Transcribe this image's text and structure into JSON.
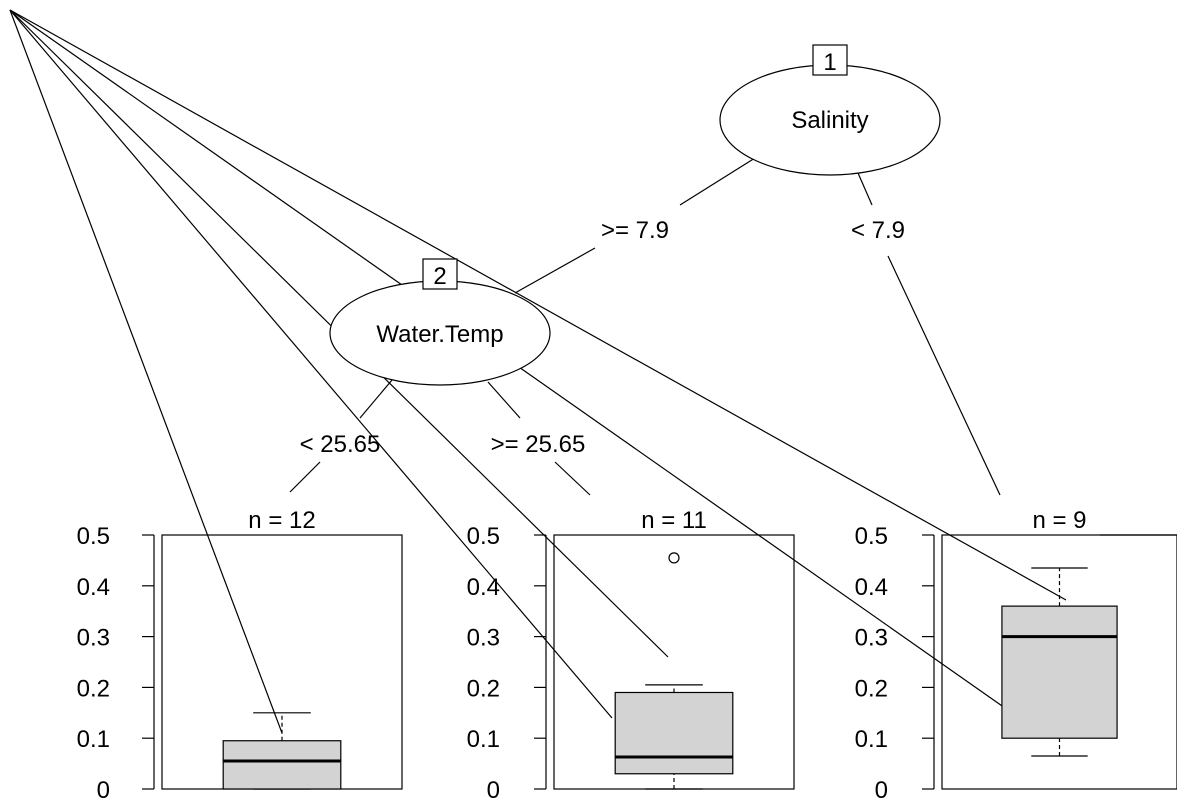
{
  "tree": {
    "nodes": [
      {
        "id": "1",
        "variable": "Salinity"
      },
      {
        "id": "2",
        "variable": "Water.Temp"
      }
    ],
    "edges": [
      {
        "label": ">= 7.9"
      },
      {
        "label": "< 7.9"
      },
      {
        "label": "< 25.65"
      },
      {
        "label": ">= 25.65"
      }
    ]
  },
  "chart_data": [
    {
      "type": "box",
      "title": "n = 12",
      "ylim": [
        0,
        0.5
      ],
      "ticks": [
        "0",
        "0.1",
        "0.2",
        "0.3",
        "0.4",
        "0.5"
      ],
      "box": {
        "lower_whisker": 0.0,
        "q1": 0.0,
        "median": 0.055,
        "q3": 0.095,
        "upper_whisker": 0.15
      },
      "outliers": []
    },
    {
      "type": "box",
      "title": "n = 11",
      "ylim": [
        0,
        0.5
      ],
      "ticks": [
        "0",
        "0.1",
        "0.2",
        "0.3",
        "0.4",
        "0.5"
      ],
      "box": {
        "lower_whisker": 0.0,
        "q1": 0.03,
        "median": 0.063,
        "q3": 0.19,
        "upper_whisker": 0.205
      },
      "outliers": [
        0.455
      ]
    },
    {
      "type": "box",
      "title": "n = 9",
      "ylim": [
        0,
        0.5
      ],
      "ticks": [
        "0",
        "0.1",
        "0.2",
        "0.3",
        "0.4",
        "0.5"
      ],
      "box": {
        "lower_whisker": 0.065,
        "q1": 0.1,
        "median": 0.3,
        "q3": 0.36,
        "upper_whisker": 0.435
      },
      "outliers": []
    }
  ]
}
